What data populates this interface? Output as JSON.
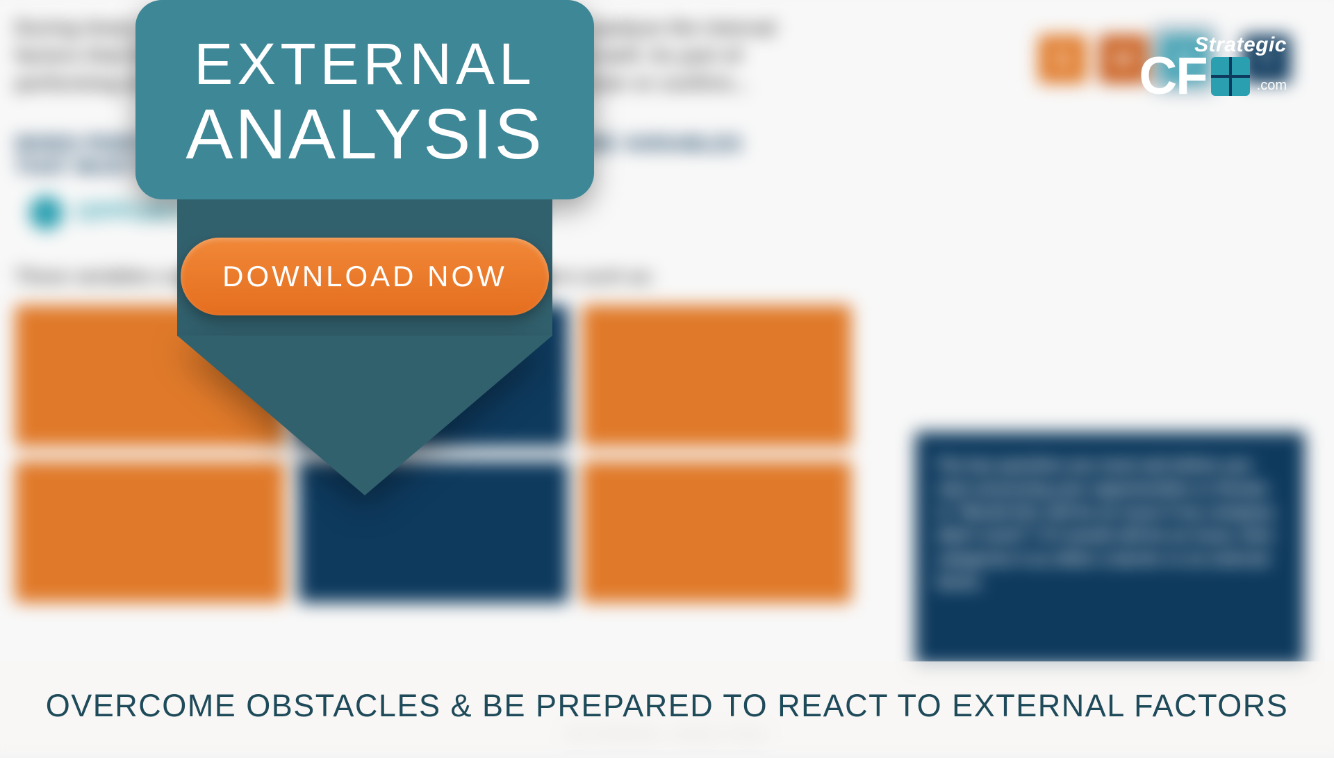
{
  "colors": {
    "shield_body": "#3e8796",
    "shield_neck": "#32616e",
    "button_top": "#f08838",
    "button_bottom": "#e56e1f",
    "banner_text": "#1e4a5a",
    "banner_bg": "rgba(248,246,243,0.78)",
    "navy": "#0e3a5e",
    "orange_tile": "#e07a2a",
    "teal": "#2a9fb0"
  },
  "shield": {
    "line1": "EXTERNAL",
    "line2": "ANALYSIS",
    "button_label": "DOWNLOAD NOW"
  },
  "banner": {
    "text": "OVERCOME OBSTACLES & BE PREPARED TO REACT TO EXTERNAL FACTORS"
  },
  "logo": {
    "top": "Strategic",
    "main_left": "CF",
    "main_right": "",
    "suffix": ".com"
  },
  "background": {
    "paragraph": "During times of strategic planning, it is important to not only analyze the internal factors that impact your company but also external factors as well. As part of performing an external analysis, it enables you to either discover or confirm...",
    "subhead": "WHEN PERFORMING AN EXTERNAL ANALYSIS THERE ARE VARIABLES THAT MUST BE ADDRESSED",
    "opp_label": "OPPORTUNITIES",
    "threat_label": "THREATS",
    "line": "These variables could include market trends, or external factors such as:",
    "swot": {
      "s": "S",
      "w": "W",
      "o": "O",
      "t": "T"
    },
    "callout": "The key question you must ask before you start assessing your opportunities or threats is \"Would this still be an issue if my company didn't exist?\" If it would still be an issue, then categorize it as either a barrier or an external factor.",
    "footer": "EXTERNAL ANALYSIS"
  }
}
